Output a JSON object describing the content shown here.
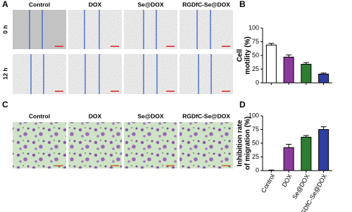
{
  "panels": {
    "a": {
      "label": "A",
      "columns": [
        "Control",
        "DOX",
        "Se@DOX",
        "RGDfC-Se@DOX"
      ],
      "rows": [
        "0 h",
        "12 h"
      ]
    },
    "c": {
      "label": "C",
      "columns": [
        "Control",
        "DOX",
        "Se@DOX",
        "RGDfC-Se@DOX"
      ]
    }
  },
  "chart_data": [
    {
      "type": "bar",
      "panel_label": "B",
      "ylabel": [
        "Cell",
        "motility (%)"
      ],
      "categories": [
        null,
        null,
        null,
        null
      ],
      "values": [
        69,
        47,
        34,
        16
      ],
      "errors": [
        3,
        4,
        3,
        2
      ],
      "colors": [
        "#ffffff",
        "#8b3a9c",
        "#2e7d32",
        "#2f3ea0"
      ],
      "ylim": [
        0,
        100
      ],
      "yticks": [
        0,
        25,
        50,
        75,
        100
      ]
    },
    {
      "type": "bar",
      "panel_label": "D",
      "ylabel": [
        "Inhibition rate",
        "of migration (%)"
      ],
      "categories": [
        "Control",
        "DOX",
        "Se@DOX",
        "RGDfC-Se@DOX"
      ],
      "values": [
        0,
        42,
        61,
        75
      ],
      "errors": [
        1,
        6,
        3,
        5
      ],
      "colors": [
        "#ffffff",
        "#8b3a9c",
        "#2e7d32",
        "#2f3ea0"
      ],
      "ylim": [
        0,
        100
      ],
      "yticks": [
        0,
        25,
        50,
        75,
        100
      ]
    }
  ]
}
